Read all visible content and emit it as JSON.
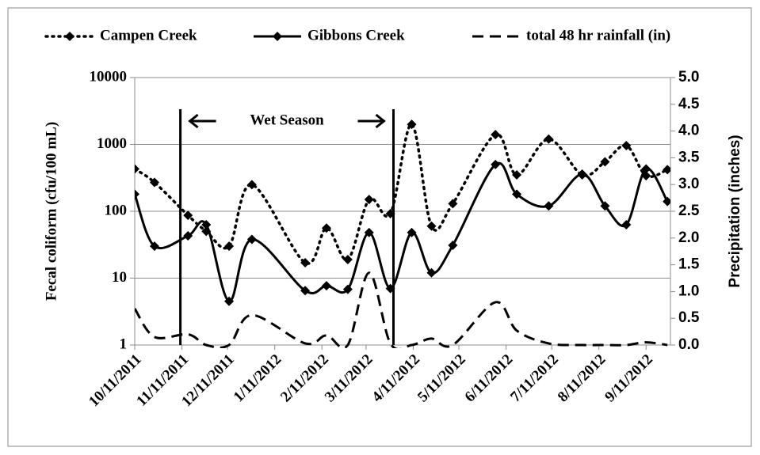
{
  "chart_data": {
    "type": "line",
    "y_label": "Fecal coliform (cfu/100 mL)",
    "y2_label": "Precipitation (inches)",
    "log_y": true,
    "grid": true,
    "x": [
      "10/11/2011",
      "10/24/2011",
      "11/15/2011",
      "11/27/2011",
      "12/12/2011",
      "12/27/2011",
      "1/31/2012",
      "2/14/2012",
      "2/28/2012",
      "3/13/2012",
      "3/27/2012",
      "4/10/2012",
      "4/23/2012",
      "5/7/2012",
      "6/4/2012",
      "6/18/2012",
      "7/9/2012",
      "7/31/2012",
      "8/15/2012",
      "8/29/2012",
      "9/11/2012",
      "9/25/2012"
    ],
    "xlim": [
      "10/11/2011",
      "9/27/2012"
    ],
    "xticks": [
      "10/11/2011",
      "11/11/2011",
      "12/11/2011",
      "1/11/2012",
      "2/11/2012",
      "3/11/2012",
      "4/11/2012",
      "5/11/2012",
      "6/11/2012",
      "7/11/2012",
      "8/11/2012",
      "9/11/2012"
    ],
    "ylim": [
      1,
      10000
    ],
    "yticks": [
      1,
      10,
      100,
      1000,
      10000
    ],
    "y2lim": [
      0,
      5
    ],
    "y2ticks": [
      {
        "value": 0,
        "label": "0.0"
      },
      {
        "value": 0.5,
        "label": "0.5"
      },
      {
        "value": 1,
        "label": "1.0"
      },
      {
        "value": 1.5,
        "label": "1.5"
      },
      {
        "value": 2,
        "label": "2.0"
      },
      {
        "value": 2.5,
        "label": "2.5"
      },
      {
        "value": 3,
        "label": "3.0"
      },
      {
        "value": 3.5,
        "label": "3.5"
      },
      {
        "value": 4,
        "label": "4.0"
      },
      {
        "value": 4.5,
        "label": "4.5"
      },
      {
        "value": 5,
        "label": "5.0"
      }
    ],
    "series": [
      {
        "name": "Campen Creek",
        "color": "#000000",
        "style": "dotted",
        "markers": true,
        "values": [
          430,
          270,
          87,
          50,
          30,
          250,
          17,
          56,
          19,
          150,
          92,
          2000,
          60,
          130,
          1400,
          350,
          1200,
          350,
          550,
          960,
          340,
          420
        ]
      },
      {
        "name": "Gibbons Creek",
        "color": "#000000",
        "style": "solid",
        "markers": true,
        "values": [
          180,
          30,
          43,
          63,
          4.5,
          38,
          6.5,
          7.7,
          6.8,
          48,
          7,
          48,
          12,
          31,
          500,
          180,
          120,
          360,
          120,
          63,
          430,
          140
        ]
      },
      {
        "name": "total 48 hr rainfall (in)",
        "color": "#000000",
        "style": "dashed",
        "markers": false,
        "axis": "y2",
        "values": [
          0.68,
          0.15,
          0.2,
          0,
          0,
          0.56,
          0.03,
          0.18,
          0,
          1.35,
          0.03,
          0,
          0.12,
          0,
          0.8,
          0.27,
          0.03,
          0,
          0,
          0,
          0.05,
          0
        ]
      }
    ],
    "wet_season": {
      "label": "Wet Season",
      "start": "11/10/2011",
      "end": "3/29/2012"
    }
  }
}
